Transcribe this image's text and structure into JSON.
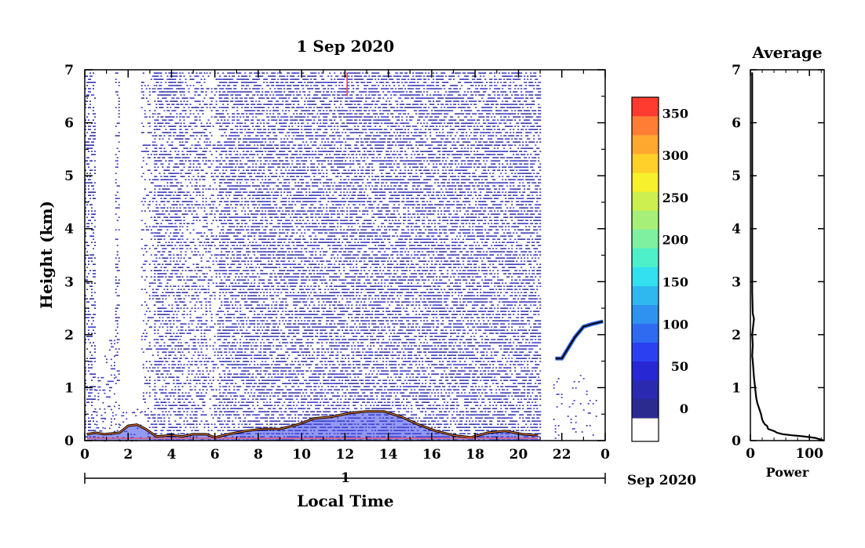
{
  "chart_data": [
    {
      "type": "heatmap",
      "title": "1 Sep 2020",
      "xlabel": "Local Time",
      "ylabel": "Height (km)",
      "xlim": [
        0,
        24
      ],
      "ylim": [
        0,
        7
      ],
      "x_ticks": [
        "0",
        "2",
        "4",
        "6",
        "8",
        "10",
        "12",
        "14",
        "16",
        "18",
        "20",
        "22",
        "0"
      ],
      "y_ticks": [
        "0",
        "1",
        "2",
        "3",
        "4",
        "5",
        "6",
        "7"
      ],
      "day_axis": {
        "label": "1",
        "date_label": "Sep 2020"
      },
      "colorbar": {
        "ticks": [
          "0",
          "50",
          "100",
          "150",
          "200",
          "250",
          "300",
          "350"
        ],
        "vmin": 0,
        "vmax": 380,
        "colors": [
          "#2b2b8f",
          "#2a2ab0",
          "#2727d4",
          "#2b41f0",
          "#2f6bf0",
          "#2f91f0",
          "#2fb8f0",
          "#32e0f0",
          "#4ef0c9",
          "#7ff0a0",
          "#a6f07a",
          "#cdf050",
          "#f7f02c",
          "#ffd02a",
          "#ffa830",
          "#ff7d35",
          "#ff3b30"
        ]
      },
      "noise_coverage": [
        {
          "x0": 0.0,
          "x1": 0.45,
          "top": 6.95,
          "density": 0.45
        },
        {
          "x0": 0.45,
          "x1": 0.9,
          "top": 1.2,
          "density": 0.2
        },
        {
          "x0": 0.9,
          "x1": 1.4,
          "top": 1.9,
          "density": 0.25
        },
        {
          "x0": 1.4,
          "x1": 1.6,
          "top": 6.95,
          "density": 0.35
        },
        {
          "x0": 1.6,
          "x1": 2.6,
          "top": 0.6,
          "density": 0.15
        },
        {
          "x0": 2.6,
          "x1": 3.2,
          "top": 6.95,
          "density": 0.25
        },
        {
          "x0": 3.2,
          "x1": 4.4,
          "top": 6.95,
          "density": 0.55
        },
        {
          "x0": 4.4,
          "x1": 5.6,
          "top": 6.95,
          "density": 0.45
        },
        {
          "x0": 5.6,
          "x1": 6.2,
          "top": 6.95,
          "density": 0.3
        },
        {
          "x0": 6.2,
          "x1": 21.0,
          "top": 6.95,
          "density": 0.62
        },
        {
          "x0": 21.6,
          "x1": 23.6,
          "top": 1.3,
          "density": 0.06
        }
      ],
      "aerosol_layer": [
        {
          "x": 0.1,
          "y": 0.12
        },
        {
          "x": 0.5,
          "y": 0.15
        },
        {
          "x": 0.9,
          "y": 0.12
        },
        {
          "x": 1.6,
          "y": 0.15
        },
        {
          "x": 2.0,
          "y": 0.28
        },
        {
          "x": 2.4,
          "y": 0.3
        },
        {
          "x": 2.8,
          "y": 0.22
        },
        {
          "x": 3.3,
          "y": 0.08
        },
        {
          "x": 4.0,
          "y": 0.1
        },
        {
          "x": 4.5,
          "y": 0.08
        },
        {
          "x": 5.0,
          "y": 0.12
        },
        {
          "x": 5.6,
          "y": 0.12
        },
        {
          "x": 6.0,
          "y": 0.06
        },
        {
          "x": 6.6,
          "y": 0.12
        },
        {
          "x": 7.4,
          "y": 0.18
        },
        {
          "x": 8.2,
          "y": 0.22
        },
        {
          "x": 9.0,
          "y": 0.22
        },
        {
          "x": 9.8,
          "y": 0.3
        },
        {
          "x": 10.6,
          "y": 0.42
        },
        {
          "x": 11.4,
          "y": 0.45
        },
        {
          "x": 12.2,
          "y": 0.52
        },
        {
          "x": 13.0,
          "y": 0.55
        },
        {
          "x": 13.8,
          "y": 0.55
        },
        {
          "x": 14.6,
          "y": 0.45
        },
        {
          "x": 15.4,
          "y": 0.3
        },
        {
          "x": 16.2,
          "y": 0.18
        },
        {
          "x": 17.0,
          "y": 0.1
        },
        {
          "x": 17.8,
          "y": 0.06
        },
        {
          "x": 18.6,
          "y": 0.15
        },
        {
          "x": 19.4,
          "y": 0.18
        },
        {
          "x": 20.2,
          "y": 0.12
        },
        {
          "x": 20.9,
          "y": 0.1
        }
      ],
      "upper_layer": [
        {
          "x": 21.7,
          "y": 1.55
        },
        {
          "x": 22.0,
          "y": 1.55
        },
        {
          "x": 22.6,
          "y": 1.95
        },
        {
          "x": 23.0,
          "y": 2.15
        },
        {
          "x": 23.4,
          "y": 2.2
        },
        {
          "x": 23.9,
          "y": 2.25
        }
      ],
      "red_streak": {
        "x": 12.1,
        "y0": 6.5,
        "y1": 6.95
      }
    },
    {
      "type": "line",
      "title": "Average",
      "xlabel": "Power",
      "ylabel": "",
      "xlim": [
        0,
        125
      ],
      "ylim": [
        0,
        7
      ],
      "x_ticks": [
        "0",
        "100"
      ],
      "y_ticks": [
        "0",
        "1",
        "2",
        "3",
        "4",
        "5",
        "6",
        "7"
      ],
      "series": [
        {
          "x": [
            125,
            110,
            90,
            70,
            55,
            45,
            40,
            35,
            30,
            28,
            25,
            22,
            20,
            18,
            15,
            12,
            10,
            8,
            6,
            4,
            3,
            4,
            3,
            5,
            6,
            4,
            3,
            3,
            3,
            3,
            3,
            3,
            3,
            3,
            3
          ],
          "y": [
            0.0,
            0.05,
            0.08,
            0.1,
            0.12,
            0.15,
            0.18,
            0.2,
            0.22,
            0.28,
            0.3,
            0.35,
            0.4,
            0.5,
            0.6,
            0.7,
            0.8,
            1.0,
            1.2,
            1.5,
            1.6,
            1.8,
            2.0,
            2.2,
            2.3,
            2.4,
            2.8,
            3.0,
            3.5,
            4.0,
            4.5,
            5.0,
            5.5,
            6.0,
            6.95
          ]
        }
      ]
    }
  ]
}
